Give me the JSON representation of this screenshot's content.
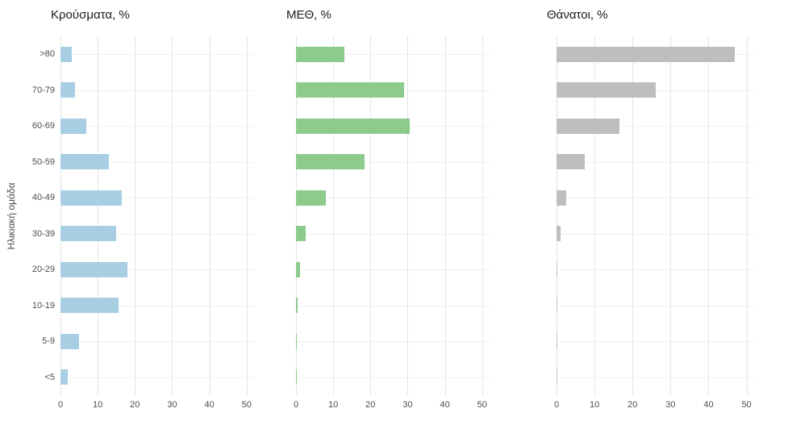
{
  "figure": {
    "y_axis_title": "Ηλικιακή ομάδα"
  },
  "chart_data": {
    "type": "bar",
    "orientation": "horizontal",
    "note": "Three faceted horizontal bar charts sharing a common y axis of age groups",
    "categories_top_to_bottom": [
      ">80",
      "70-79",
      "60-69",
      "50-59",
      "40-49",
      "30-39",
      "20-29",
      "10-19",
      "5-9",
      "<5"
    ],
    "x_ticks": [
      0,
      10,
      20,
      30,
      40,
      50
    ],
    "xlim": [
      0,
      52
    ],
    "ylabel": "Ηλικιακή ομάδα",
    "xlabel": "",
    "legend": "none",
    "grid": "major vertical and per-category horizontal light gray gridlines, white background",
    "panels": [
      {
        "title": "Κρούσματα, %",
        "color": "#a8cee4",
        "values": [
          3,
          4,
          7,
          13,
          16.5,
          15,
          18,
          15.5,
          5,
          2
        ]
      },
      {
        "title": "ΜΕΘ, %",
        "color": "#8dcb8d",
        "values": [
          13,
          29,
          30.5,
          18.5,
          8,
          2.5,
          1,
          0.5,
          0.2,
          0.3
        ]
      },
      {
        "title": "Θάνατοι, %",
        "color": "#bebebe",
        "values": [
          47,
          26,
          16.5,
          7.5,
          2.5,
          1,
          0.3,
          0.3,
          0.1,
          0.3
        ]
      }
    ]
  }
}
